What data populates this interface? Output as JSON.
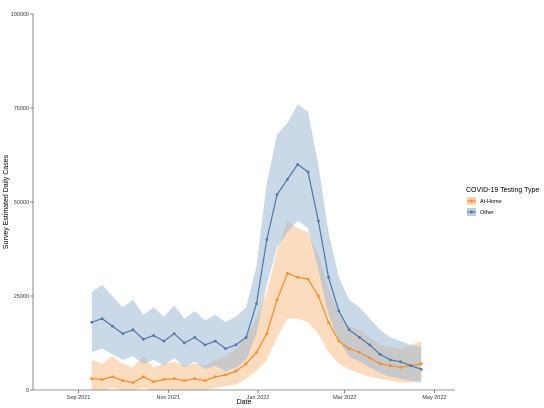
{
  "chart_data": {
    "type": "line",
    "xlabel": "Date",
    "ylabel": "Survey Estimated Daily Cases",
    "ylim": [
      0,
      100000
    ],
    "yticks": [
      0,
      25000,
      50000,
      75000,
      100000
    ],
    "xlim": [
      "2021-08-01",
      "2022-05-15"
    ],
    "xticks": [
      {
        "date": "2021-09-01",
        "label": "Sep 2021"
      },
      {
        "date": "2021-11-01",
        "label": "Nov 2021"
      },
      {
        "date": "2022-01-01",
        "label": "Jan 2022"
      },
      {
        "date": "2022-03-01",
        "label": "Mar 2022"
      },
      {
        "date": "2022-05-01",
        "label": "May 2022"
      }
    ],
    "grid": false,
    "legend": {
      "title": "COVID-19 Testing Type",
      "position": "right"
    },
    "series": [
      {
        "name": "At-Home",
        "color": "#f28e2b",
        "band_color": "#f9c08a",
        "points": [
          [
            "2021-09-10",
            3000
          ],
          [
            "2021-09-17",
            2800
          ],
          [
            "2021-09-24",
            3500
          ],
          [
            "2021-10-01",
            2500
          ],
          [
            "2021-10-08",
            2000
          ],
          [
            "2021-10-15",
            3500
          ],
          [
            "2021-10-22",
            2200
          ],
          [
            "2021-10-29",
            2800
          ],
          [
            "2021-11-05",
            3000
          ],
          [
            "2021-11-12",
            2500
          ],
          [
            "2021-11-19",
            3000
          ],
          [
            "2021-11-26",
            2500
          ],
          [
            "2021-12-03",
            3500
          ],
          [
            "2021-12-10",
            4000
          ],
          [
            "2021-12-17",
            5000
          ],
          [
            "2021-12-24",
            7000
          ],
          [
            "2021-12-31",
            10000
          ],
          [
            "2022-01-07",
            15000
          ],
          [
            "2022-01-14",
            24000
          ],
          [
            "2022-01-21",
            31000
          ],
          [
            "2022-01-28",
            30000
          ],
          [
            "2022-02-04",
            29500
          ],
          [
            "2022-02-11",
            25000
          ],
          [
            "2022-02-18",
            18000
          ],
          [
            "2022-02-25",
            13000
          ],
          [
            "2022-03-04",
            11000
          ],
          [
            "2022-03-11",
            10000
          ],
          [
            "2022-03-18",
            8500
          ],
          [
            "2022-03-25",
            7000
          ],
          [
            "2022-04-01",
            6500
          ],
          [
            "2022-04-08",
            6000
          ],
          [
            "2022-04-15",
            6500
          ],
          [
            "2022-04-22",
            7000
          ]
        ],
        "lower": [
          [
            "2021-09-10",
            0
          ],
          [
            "2021-09-17",
            0
          ],
          [
            "2021-09-24",
            500
          ],
          [
            "2021-10-01",
            0
          ],
          [
            "2021-10-08",
            0
          ],
          [
            "2021-10-15",
            500
          ],
          [
            "2021-10-22",
            0
          ],
          [
            "2021-10-29",
            0
          ],
          [
            "2021-11-05",
            0
          ],
          [
            "2021-11-12",
            0
          ],
          [
            "2021-11-19",
            0
          ],
          [
            "2021-11-26",
            0
          ],
          [
            "2021-12-03",
            500
          ],
          [
            "2021-12-10",
            1000
          ],
          [
            "2021-12-17",
            1500
          ],
          [
            "2021-12-24",
            3000
          ],
          [
            "2021-12-31",
            5000
          ],
          [
            "2022-01-07",
            8000
          ],
          [
            "2022-01-14",
            14000
          ],
          [
            "2022-01-21",
            19000
          ],
          [
            "2022-01-28",
            19000
          ],
          [
            "2022-02-04",
            18000
          ],
          [
            "2022-02-11",
            15000
          ],
          [
            "2022-02-18",
            10000
          ],
          [
            "2022-02-25",
            7000
          ],
          [
            "2022-03-04",
            5500
          ],
          [
            "2022-03-11",
            4500
          ],
          [
            "2022-03-18",
            3500
          ],
          [
            "2022-03-25",
            3000
          ],
          [
            "2022-04-01",
            2500
          ],
          [
            "2022-04-08",
            2000
          ],
          [
            "2022-04-15",
            2000
          ],
          [
            "2022-04-22",
            2500
          ]
        ],
        "upper": [
          [
            "2021-09-10",
            8000
          ],
          [
            "2021-09-17",
            7000
          ],
          [
            "2021-09-24",
            9000
          ],
          [
            "2021-10-01",
            7000
          ],
          [
            "2021-10-08",
            6000
          ],
          [
            "2021-10-15",
            9000
          ],
          [
            "2021-10-22",
            6000
          ],
          [
            "2021-10-29",
            7000
          ],
          [
            "2021-11-05",
            7500
          ],
          [
            "2021-11-12",
            6500
          ],
          [
            "2021-11-19",
            7000
          ],
          [
            "2021-11-26",
            6500
          ],
          [
            "2021-12-03",
            8000
          ],
          [
            "2021-12-10",
            9000
          ],
          [
            "2021-12-17",
            11000
          ],
          [
            "2021-12-24",
            14000
          ],
          [
            "2021-12-31",
            19000
          ],
          [
            "2022-01-07",
            26000
          ],
          [
            "2022-01-14",
            37000
          ],
          [
            "2022-01-21",
            45000
          ],
          [
            "2022-01-28",
            43000
          ],
          [
            "2022-02-04",
            42000
          ],
          [
            "2022-02-11",
            36000
          ],
          [
            "2022-02-18",
            27000
          ],
          [
            "2022-02-25",
            20000
          ],
          [
            "2022-03-04",
            17000
          ],
          [
            "2022-03-11",
            16000
          ],
          [
            "2022-03-18",
            14000
          ],
          [
            "2022-03-25",
            12000
          ],
          [
            "2022-04-01",
            11500
          ],
          [
            "2022-04-08",
            11000
          ],
          [
            "2022-04-15",
            12000
          ],
          [
            "2022-04-22",
            13000
          ]
        ]
      },
      {
        "name": "Other",
        "color": "#4e79a7",
        "band_color": "#9fb9d3",
        "points": [
          [
            "2021-09-10",
            18000
          ],
          [
            "2021-09-17",
            19000
          ],
          [
            "2021-09-24",
            17000
          ],
          [
            "2021-10-01",
            15000
          ],
          [
            "2021-10-08",
            16000
          ],
          [
            "2021-10-15",
            13500
          ],
          [
            "2021-10-22",
            14500
          ],
          [
            "2021-10-29",
            13000
          ],
          [
            "2021-11-05",
            15000
          ],
          [
            "2021-11-12",
            12500
          ],
          [
            "2021-11-19",
            14000
          ],
          [
            "2021-11-26",
            12000
          ],
          [
            "2021-12-03",
            13000
          ],
          [
            "2021-12-10",
            11000
          ],
          [
            "2021-12-17",
            12000
          ],
          [
            "2021-12-24",
            14000
          ],
          [
            "2021-12-31",
            23000
          ],
          [
            "2022-01-07",
            40000
          ],
          [
            "2022-01-14",
            52000
          ],
          [
            "2022-01-21",
            56000
          ],
          [
            "2022-01-28",
            60000
          ],
          [
            "2022-02-04",
            58000
          ],
          [
            "2022-02-11",
            45000
          ],
          [
            "2022-02-18",
            30000
          ],
          [
            "2022-02-25",
            21000
          ],
          [
            "2022-03-04",
            16000
          ],
          [
            "2022-03-11",
            14000
          ],
          [
            "2022-03-18",
            12000
          ],
          [
            "2022-03-25",
            9500
          ],
          [
            "2022-04-01",
            8000
          ],
          [
            "2022-04-08",
            7500
          ],
          [
            "2022-04-15",
            6500
          ],
          [
            "2022-04-22",
            5500
          ]
        ],
        "lower": [
          [
            "2021-09-10",
            10000
          ],
          [
            "2021-09-17",
            11000
          ],
          [
            "2021-09-24",
            9500
          ],
          [
            "2021-10-01",
            8000
          ],
          [
            "2021-10-08",
            9000
          ],
          [
            "2021-10-15",
            7000
          ],
          [
            "2021-10-22",
            8000
          ],
          [
            "2021-10-29",
            6500
          ],
          [
            "2021-11-05",
            8500
          ],
          [
            "2021-11-12",
            6000
          ],
          [
            "2021-11-19",
            7500
          ],
          [
            "2021-11-26",
            5500
          ],
          [
            "2021-12-03",
            6500
          ],
          [
            "2021-12-10",
            5000
          ],
          [
            "2021-12-17",
            6000
          ],
          [
            "2021-12-24",
            8000
          ],
          [
            "2021-12-31",
            15000
          ],
          [
            "2022-01-07",
            28000
          ],
          [
            "2022-01-14",
            38000
          ],
          [
            "2022-01-21",
            42000
          ],
          [
            "2022-01-28",
            45000
          ],
          [
            "2022-02-04",
            43000
          ],
          [
            "2022-02-11",
            32000
          ],
          [
            "2022-02-18",
            20000
          ],
          [
            "2022-02-25",
            13000
          ],
          [
            "2022-03-04",
            9000
          ],
          [
            "2022-03-11",
            7500
          ],
          [
            "2022-03-18",
            6000
          ],
          [
            "2022-03-25",
            4500
          ],
          [
            "2022-04-01",
            3500
          ],
          [
            "2022-04-08",
            3000
          ],
          [
            "2022-04-15",
            2500
          ],
          [
            "2022-04-22",
            2000
          ]
        ],
        "upper": [
          [
            "2021-09-10",
            26000
          ],
          [
            "2021-09-17",
            28000
          ],
          [
            "2021-09-24",
            25000
          ],
          [
            "2021-10-01",
            22000
          ],
          [
            "2021-10-08",
            24000
          ],
          [
            "2021-10-15",
            20000
          ],
          [
            "2021-10-22",
            22000
          ],
          [
            "2021-10-29",
            19500
          ],
          [
            "2021-11-05",
            22500
          ],
          [
            "2021-11-12",
            19000
          ],
          [
            "2021-11-19",
            21000
          ],
          [
            "2021-11-26",
            18500
          ],
          [
            "2021-12-03",
            20000
          ],
          [
            "2021-12-10",
            18000
          ],
          [
            "2021-12-17",
            19500
          ],
          [
            "2021-12-24",
            22000
          ],
          [
            "2021-12-31",
            33000
          ],
          [
            "2022-01-07",
            55000
          ],
          [
            "2022-01-14",
            68000
          ],
          [
            "2022-01-21",
            71000
          ],
          [
            "2022-01-28",
            76000
          ],
          [
            "2022-02-04",
            74000
          ],
          [
            "2022-02-11",
            60000
          ],
          [
            "2022-02-18",
            42000
          ],
          [
            "2022-02-25",
            30000
          ],
          [
            "2022-03-04",
            24000
          ],
          [
            "2022-03-11",
            22000
          ],
          [
            "2022-03-18",
            19000
          ],
          [
            "2022-03-25",
            16000
          ],
          [
            "2022-04-01",
            14000
          ],
          [
            "2022-04-08",
            13000
          ],
          [
            "2022-04-15",
            12000
          ],
          [
            "2022-04-22",
            11500
          ]
        ]
      }
    ]
  }
}
